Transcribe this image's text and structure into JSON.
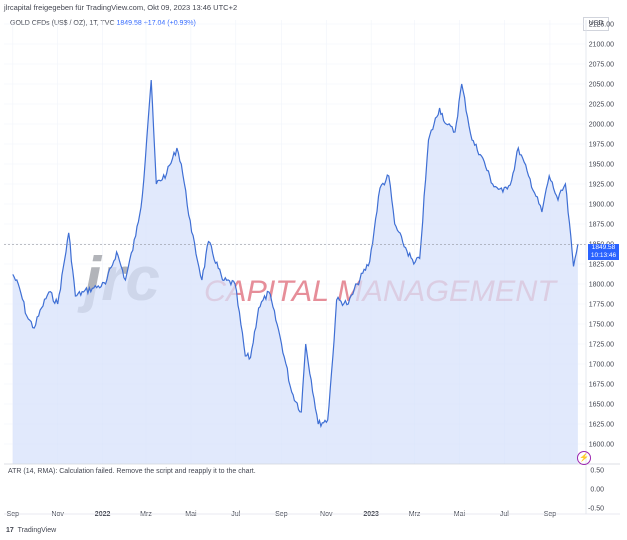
{
  "header": {
    "published": "jlrcapital freigegeben für TradingView.com, Okt 09, 2023 13:46 UTC+2"
  },
  "legend": {
    "symbol": "GOLD CFDs (US$ / OZ), 1T, TVC",
    "price": "1849.58",
    "change": "+17.04 (+0.93%)"
  },
  "currency_button": "USD",
  "price_tag": {
    "price": "1849.58",
    "countdown": "10:13:46"
  },
  "watermark": {
    "logo": "jrc",
    "text": "CAPITAL MANAGEMENT"
  },
  "atr_label": "ATR (14, RMA): Calculation failed. Remove the script and reapply it to the chart.",
  "footer": {
    "brand": "17",
    "text": "TradingView"
  },
  "colors": {
    "line": "#3f6fd4",
    "fill": "#d7e2fb",
    "watermark_text": "#e27b88",
    "watermark_logo": "#a5a7ad",
    "price_tag": "#2962ff"
  },
  "chart_data": {
    "type": "area",
    "title": "GOLD CFDs (US$ / OZ), 1T, TVC",
    "xlabel": "",
    "ylabel": "",
    "ylim": [
      1575,
      2130
    ],
    "y_ticks": [
      "2125.00",
      "2100.00",
      "2075.00",
      "2050.00",
      "2025.00",
      "2000.00",
      "1975.00",
      "1950.00",
      "1925.00",
      "1900.00",
      "1875.00",
      "1850.00",
      "1825.00",
      "1800.00",
      "1775.00",
      "1750.00",
      "1725.00",
      "1700.00",
      "1675.00",
      "1650.00",
      "1625.00",
      "1600.00"
    ],
    "x_ticks": [
      "Sep",
      "Nov",
      "2022",
      "Mrz",
      "Mai",
      "Jul",
      "Sep",
      "Nov",
      "2023",
      "Mrz",
      "Mai",
      "Jul",
      "Sep"
    ],
    "x": [
      "2021-09-01",
      "2021-09-10",
      "2021-09-20",
      "2021-09-30",
      "2021-10-10",
      "2021-10-20",
      "2021-11-01",
      "2021-11-16",
      "2021-11-25",
      "2021-12-06",
      "2021-12-20",
      "2022-01-05",
      "2022-01-20",
      "2022-02-01",
      "2022-02-15",
      "2022-02-24",
      "2022-03-08",
      "2022-03-15",
      "2022-03-29",
      "2022-04-12",
      "2022-04-18",
      "2022-05-02",
      "2022-05-16",
      "2022-05-25",
      "2022-06-13",
      "2022-06-30",
      "2022-07-14",
      "2022-07-21",
      "2022-08-01",
      "2022-08-15",
      "2022-08-30",
      "2022-09-15",
      "2022-09-28",
      "2022-10-04",
      "2022-10-21",
      "2022-11-03",
      "2022-11-10",
      "2022-11-15",
      "2022-12-01",
      "2022-12-13",
      "2022-12-30",
      "2023-01-13",
      "2023-01-25",
      "2023-02-02",
      "2023-02-13",
      "2023-02-28",
      "2023-03-08",
      "2023-03-20",
      "2023-04-04",
      "2023-04-13",
      "2023-04-25",
      "2023-05-04",
      "2023-05-18",
      "2023-05-31",
      "2023-06-15",
      "2023-06-29",
      "2023-07-11",
      "2023-07-20",
      "2023-08-03",
      "2023-08-21",
      "2023-08-31",
      "2023-09-12",
      "2023-09-22",
      "2023-10-03",
      "2023-10-09"
    ],
    "series": [
      {
        "values": [
          1812,
          1795,
          1760,
          1745,
          1770,
          1790,
          1775,
          1864,
          1785,
          1790,
          1795,
          1800,
          1840,
          1805,
          1860,
          1910,
          2055,
          1925,
          1938,
          1970,
          1950,
          1865,
          1805,
          1853,
          1805,
          1800,
          1710,
          1708,
          1770,
          1790,
          1735,
          1665,
          1640,
          1725,
          1625,
          1630,
          1710,
          1780,
          1775,
          1800,
          1828,
          1920,
          1935,
          1875,
          1852,
          1825,
          1832,
          1980,
          2020,
          2000,
          1990,
          2050,
          1980,
          1960,
          1925,
          1915,
          1930,
          1970,
          1935,
          1890,
          1935,
          1905,
          1925,
          1822,
          1850
        ]
      }
    ],
    "atr_ylim": [
      -0.5,
      0.5
    ],
    "atr_ticks": [
      "0.50",
      "0.00",
      "-0.50"
    ],
    "grid": true,
    "legend": "top-left",
    "current_price": 1849.58
  }
}
